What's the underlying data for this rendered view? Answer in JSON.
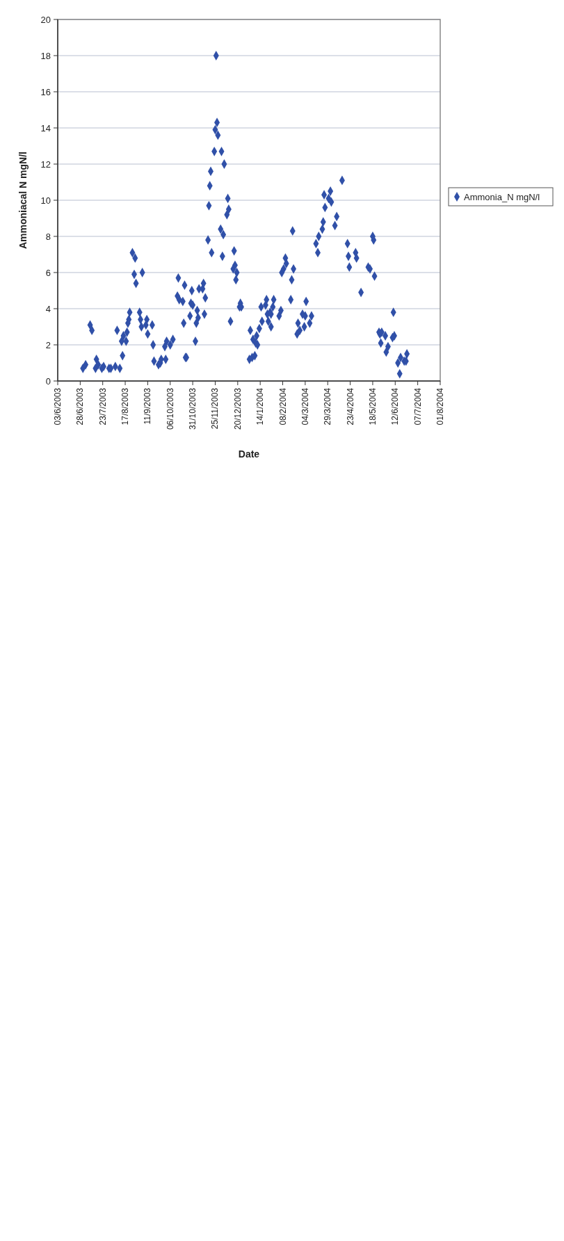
{
  "chart_data": {
    "type": "scatter",
    "xlabel": "Date",
    "ylabel": "Ammoniacal N mgN/l",
    "series": [
      {
        "name": "Ammonia_N mgN/l",
        "color": "#3050a8",
        "x": [
          "2003-07-01",
          "2003-07-04",
          "2003-07-09",
          "2003-07-11",
          "2003-07-15",
          "2003-07-16",
          "2003-07-18",
          "2003-07-22",
          "2003-07-24",
          "2003-07-30",
          "2003-08-01",
          "2003-08-06",
          "2003-08-08",
          "2003-08-11",
          "2003-08-13",
          "2003-08-14",
          "2003-08-15",
          "2003-08-18",
          "2003-08-19",
          "2003-08-20",
          "2003-08-21",
          "2003-08-22",
          "2003-08-25",
          "2003-08-27",
          "2003-08-28",
          "2003-08-29",
          "2003-09-02",
          "2003-09-03",
          "2003-09-04",
          "2003-09-05",
          "2003-09-09",
          "2003-09-10",
          "2003-09-11",
          "2003-09-16",
          "2003-09-17",
          "2003-09-18",
          "2003-09-23",
          "2003-09-25",
          "2003-09-26",
          "2003-09-30",
          "2003-10-01",
          "2003-10-02",
          "2003-10-06",
          "2003-10-09",
          "2003-10-14",
          "2003-10-15",
          "2003-10-16",
          "2003-10-20",
          "2003-10-21",
          "2003-10-22",
          "2003-10-23",
          "2003-10-24",
          "2003-10-28",
          "2003-10-29",
          "2003-10-30",
          "2003-10-31",
          "2003-11-03",
          "2003-11-04",
          "2003-11-05",
          "2003-11-06",
          "2003-11-07",
          "2003-11-11",
          "2003-11-12",
          "2003-11-13",
          "2003-11-14",
          "2003-11-17",
          "2003-11-18",
          "2003-11-19",
          "2003-11-20",
          "2003-11-21",
          "2003-11-24",
          "2003-11-25",
          "2003-11-26",
          "2003-11-27",
          "2003-11-28",
          "2003-12-01",
          "2003-12-02",
          "2003-12-03",
          "2003-12-04",
          "2003-12-05",
          "2003-12-08",
          "2003-12-09",
          "2003-12-10",
          "2003-12-12",
          "2003-12-15",
          "2003-12-16",
          "2003-12-17",
          "2003-12-18",
          "2003-12-19",
          "2003-12-22",
          "2003-12-23",
          "2003-12-24",
          "2004-01-02",
          "2004-01-03",
          "2004-01-05",
          "2004-01-06",
          "2004-01-08",
          "2004-01-09",
          "2004-01-10",
          "2004-01-11",
          "2004-01-13",
          "2004-01-15",
          "2004-01-16",
          "2004-01-20",
          "2004-01-21",
          "2004-01-22",
          "2004-01-23",
          "2004-01-25",
          "2004-01-26",
          "2004-01-26",
          "2004-01-28",
          "2004-01-29",
          "2004-02-04",
          "2004-02-06",
          "2004-02-07",
          "2004-02-09",
          "2004-02-11",
          "2004-02-12",
          "2004-02-17",
          "2004-02-18",
          "2004-02-19",
          "2004-02-20",
          "2004-02-24",
          "2004-02-25",
          "2004-02-27",
          "2004-03-01",
          "2004-03-03",
          "2004-03-04",
          "2004-03-05",
          "2004-03-09",
          "2004-03-11",
          "2004-03-16",
          "2004-03-18",
          "2004-03-19",
          "2004-03-23",
          "2004-03-24",
          "2004-03-25",
          "2004-03-26",
          "2004-03-30",
          "2004-04-01",
          "2004-04-02",
          "2004-04-06",
          "2004-04-08",
          "2004-04-14",
          "2004-04-20",
          "2004-04-21",
          "2004-04-22",
          "2004-04-29",
          "2004-04-30",
          "2004-05-05",
          "2004-05-13",
          "2004-05-15",
          "2004-05-18",
          "2004-05-19",
          "2004-05-20",
          "2004-05-25",
          "2004-05-26",
          "2004-05-27",
          "2004-05-28",
          "2004-06-01",
          "2004-06-02",
          "2004-06-04",
          "2004-06-09",
          "2004-06-10",
          "2004-06-11",
          "2004-06-15",
          "2004-06-17",
          "2004-06-18",
          "2004-06-22",
          "2004-06-24",
          "2004-06-25"
        ],
        "values": [
          0.7,
          0.9,
          3.1,
          2.8,
          0.7,
          1.2,
          0.9,
          0.7,
          0.8,
          0.7,
          0.7,
          0.8,
          2.8,
          0.7,
          2.2,
          1.4,
          2.5,
          2.2,
          2.7,
          3.2,
          3.4,
          3.8,
          7.1,
          5.9,
          6.8,
          5.4,
          3.8,
          3.4,
          3.0,
          6.0,
          3.1,
          3.4,
          2.6,
          3.1,
          2.0,
          1.1,
          0.9,
          1.0,
          1.2,
          1.9,
          1.2,
          2.2,
          2.0,
          2.3,
          4.7,
          5.7,
          4.5,
          4.4,
          3.2,
          5.3,
          1.3,
          1.3,
          3.6,
          4.3,
          5.0,
          4.2,
          2.2,
          3.2,
          3.9,
          3.5,
          5.1,
          5.1,
          5.4,
          3.7,
          4.6,
          7.8,
          9.7,
          10.8,
          11.6,
          7.1,
          12.7,
          13.9,
          18.0,
          14.3,
          13.6,
          8.4,
          12.7,
          6.9,
          8.1,
          12.0,
          9.2,
          10.1,
          9.5,
          3.3,
          6.2,
          7.2,
          6.4,
          5.6,
          6.0,
          4.1,
          4.3,
          4.1,
          1.2,
          2.8,
          1.3,
          2.3,
          1.4,
          2.1,
          2.5,
          2.0,
          2.9,
          4.1,
          3.3,
          4.2,
          4.5,
          3.7,
          3.3,
          3.8,
          3.0,
          3.7,
          4.1,
          4.5,
          3.6,
          3.9,
          6.0,
          6.2,
          6.8,
          6.5,
          4.5,
          5.6,
          8.3,
          6.2,
          2.6,
          3.2,
          2.8,
          3.7,
          3.0,
          3.6,
          4.4,
          3.2,
          3.6,
          7.6,
          7.1,
          8.0,
          8.4,
          8.8,
          10.3,
          9.6,
          10.1,
          10.5,
          9.9,
          8.6,
          9.1,
          11.1,
          7.6,
          6.9,
          6.3,
          7.1,
          6.8,
          4.9,
          6.3,
          6.2,
          8.0,
          7.8,
          5.8,
          2.7,
          2.6,
          2.1,
          2.7,
          2.5,
          1.6,
          1.9,
          2.4,
          3.8,
          2.5,
          1.0,
          0.4,
          1.3,
          1.1,
          1.1,
          1.5
        ]
      }
    ],
    "xlim": [
      "2003-06-03",
      "2004-08-01"
    ],
    "xticks": [
      {
        "value": "2003-06-03",
        "label": "03/6/2003"
      },
      {
        "value": "2003-06-28",
        "label": "28/6/2003"
      },
      {
        "value": "2003-07-23",
        "label": "23/7/2003"
      },
      {
        "value": "2003-08-17",
        "label": "17/8/2003"
      },
      {
        "value": "2003-09-11",
        "label": "11/9/2003"
      },
      {
        "value": "2003-10-06",
        "label": "06/10/2003"
      },
      {
        "value": "2003-10-31",
        "label": "31/10/2003"
      },
      {
        "value": "2003-11-25",
        "label": "25/11/2003"
      },
      {
        "value": "2003-12-20",
        "label": "20/12/2003"
      },
      {
        "value": "2004-01-14",
        "label": "14/1/2004"
      },
      {
        "value": "2004-02-08",
        "label": "08/2/2004"
      },
      {
        "value": "2004-03-04",
        "label": "04/3/2004"
      },
      {
        "value": "2004-03-29",
        "label": "29/3/2004"
      },
      {
        "value": "2004-04-23",
        "label": "23/4/2004"
      },
      {
        "value": "2004-05-18",
        "label": "18/5/2004"
      },
      {
        "value": "2004-06-12",
        "label": "12/6/2004"
      },
      {
        "value": "2004-07-07",
        "label": "07/7/2004"
      },
      {
        "value": "2004-08-01",
        "label": "01/8/2004"
      }
    ],
    "ylim": [
      0,
      20
    ],
    "yticks": [
      0,
      2,
      4,
      6,
      8,
      10,
      12,
      14,
      16,
      18,
      20
    ],
    "grid": "y",
    "legend": "right",
    "marker": "diamond"
  }
}
